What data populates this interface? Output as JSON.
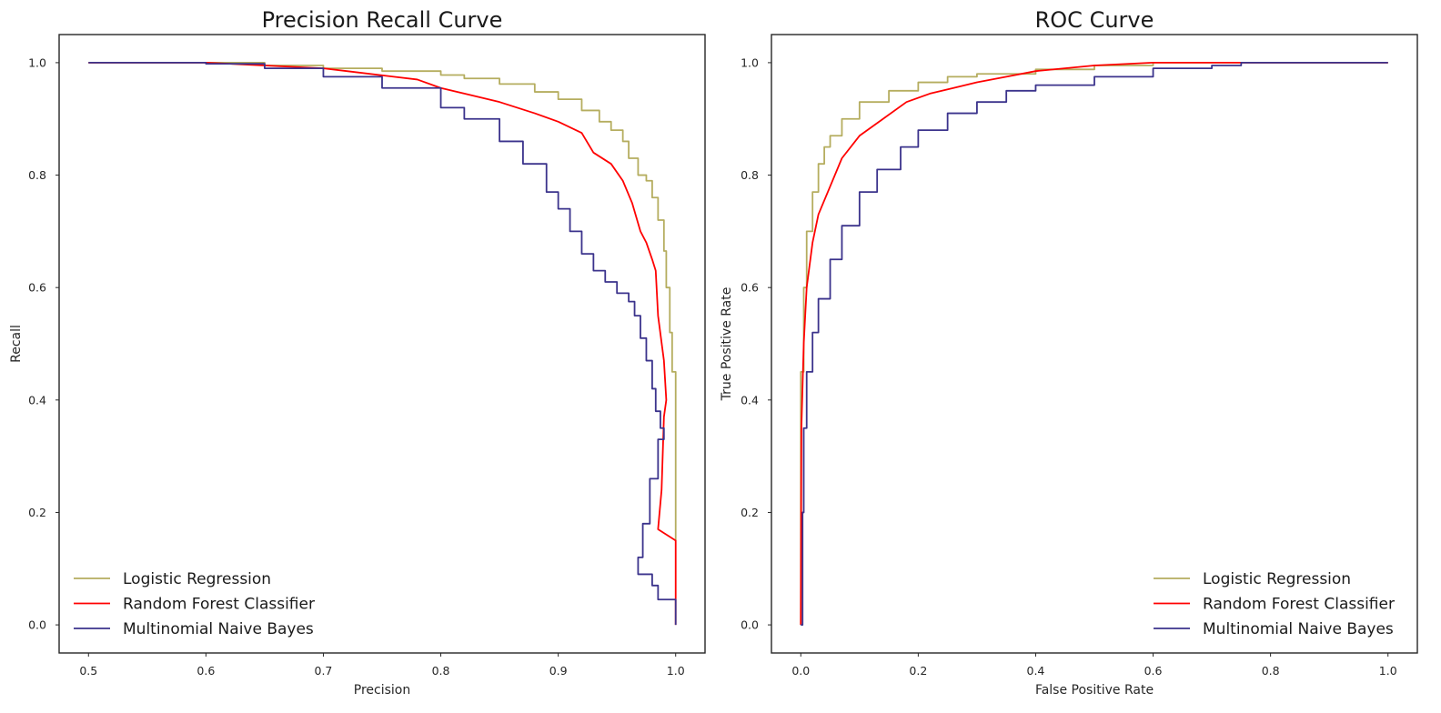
{
  "chart_data": [
    {
      "type": "line",
      "title": "Precision Recall Curve",
      "xlabel": "Precision",
      "ylabel": "Recall",
      "xlim": [
        0.475,
        1.025
      ],
      "ylim": [
        -0.05,
        1.05
      ],
      "xticks": [
        "0.5",
        "0.6",
        "0.7",
        "0.8",
        "0.9",
        "1.0"
      ],
      "yticks": [
        "0.0",
        "0.2",
        "0.4",
        "0.6",
        "0.8",
        "1.0"
      ],
      "grid": false,
      "legend": "lower-left",
      "series": [
        {
          "name": "Logistic Regression",
          "color": "#b5ad5f",
          "step": true,
          "points": [
            [
              0.5,
              1.0
            ],
            [
              0.6,
              1.0
            ],
            [
              0.65,
              0.995
            ],
            [
              0.7,
              0.99
            ],
            [
              0.75,
              0.985
            ],
            [
              0.8,
              0.978
            ],
            [
              0.82,
              0.972
            ],
            [
              0.85,
              0.962
            ],
            [
              0.88,
              0.948
            ],
            [
              0.9,
              0.935
            ],
            [
              0.92,
              0.915
            ],
            [
              0.935,
              0.895
            ],
            [
              0.945,
              0.88
            ],
            [
              0.955,
              0.86
            ],
            [
              0.96,
              0.83
            ],
            [
              0.968,
              0.8
            ],
            [
              0.975,
              0.79
            ],
            [
              0.98,
              0.76
            ],
            [
              0.985,
              0.72
            ],
            [
              0.99,
              0.665
            ],
            [
              0.992,
              0.6
            ],
            [
              0.995,
              0.52
            ],
            [
              0.997,
              0.45
            ],
            [
              1.0,
              0.33
            ],
            [
              1.0,
              0.15
            ]
          ]
        },
        {
          "name": "Random Forest Classifier",
          "color": "#ff0000",
          "step": false,
          "points": [
            [
              0.5,
              1.0
            ],
            [
              0.6,
              1.0
            ],
            [
              0.7,
              0.99
            ],
            [
              0.72,
              0.985
            ],
            [
              0.76,
              0.975
            ],
            [
              0.78,
              0.97
            ],
            [
              0.8,
              0.955
            ],
            [
              0.82,
              0.945
            ],
            [
              0.85,
              0.93
            ],
            [
              0.88,
              0.91
            ],
            [
              0.9,
              0.895
            ],
            [
              0.92,
              0.875
            ],
            [
              0.93,
              0.84
            ],
            [
              0.945,
              0.82
            ],
            [
              0.955,
              0.79
            ],
            [
              0.963,
              0.75
            ],
            [
              0.97,
              0.7
            ],
            [
              0.975,
              0.68
            ],
            [
              0.98,
              0.65
            ],
            [
              0.983,
              0.63
            ],
            [
              0.985,
              0.55
            ],
            [
              0.99,
              0.47
            ],
            [
              0.992,
              0.4
            ],
            [
              0.99,
              0.37
            ],
            [
              0.988,
              0.24
            ],
            [
              0.985,
              0.17
            ],
            [
              1.0,
              0.15
            ],
            [
              1.0,
              0.0
            ]
          ]
        },
        {
          "name": "Multinomial Naive Bayes",
          "color": "#3b338c",
          "step": true,
          "points": [
            [
              0.5,
              1.0
            ],
            [
              0.6,
              0.998
            ],
            [
              0.65,
              0.99
            ],
            [
              0.7,
              0.975
            ],
            [
              0.75,
              0.955
            ],
            [
              0.8,
              0.92
            ],
            [
              0.82,
              0.9
            ],
            [
              0.85,
              0.86
            ],
            [
              0.87,
              0.82
            ],
            [
              0.89,
              0.77
            ],
            [
              0.9,
              0.74
            ],
            [
              0.91,
              0.7
            ],
            [
              0.92,
              0.66
            ],
            [
              0.93,
              0.63
            ],
            [
              0.94,
              0.61
            ],
            [
              0.95,
              0.59
            ],
            [
              0.96,
              0.575
            ],
            [
              0.965,
              0.55
            ],
            [
              0.97,
              0.51
            ],
            [
              0.975,
              0.47
            ],
            [
              0.98,
              0.42
            ],
            [
              0.983,
              0.38
            ],
            [
              0.987,
              0.35
            ],
            [
              0.99,
              0.33
            ],
            [
              0.985,
              0.26
            ],
            [
              0.978,
              0.18
            ],
            [
              0.972,
              0.12
            ],
            [
              0.968,
              0.09
            ],
            [
              0.975,
              0.09
            ],
            [
              0.98,
              0.07
            ],
            [
              0.985,
              0.045
            ],
            [
              1.0,
              0.045
            ],
            [
              1.0,
              0.0
            ]
          ]
        }
      ]
    },
    {
      "type": "line",
      "title": "ROC Curve",
      "xlabel": "False Positive Rate",
      "ylabel": "True Positive Rate",
      "xlim": [
        -0.05,
        1.05
      ],
      "ylim": [
        -0.05,
        1.05
      ],
      "xticks": [
        "0.0",
        "0.2",
        "0.4",
        "0.6",
        "0.8",
        "1.0"
      ],
      "yticks": [
        "0.0",
        "0.2",
        "0.4",
        "0.6",
        "0.8",
        "1.0"
      ],
      "grid": false,
      "legend": "lower-right",
      "series": [
        {
          "name": "Logistic Regression",
          "color": "#b5ad5f",
          "step": true,
          "points": [
            [
              0.0,
              0.0
            ],
            [
              0.0,
              0.45
            ],
            [
              0.005,
              0.6
            ],
            [
              0.01,
              0.7
            ],
            [
              0.02,
              0.77
            ],
            [
              0.03,
              0.82
            ],
            [
              0.04,
              0.85
            ],
            [
              0.05,
              0.87
            ],
            [
              0.07,
              0.9
            ],
            [
              0.1,
              0.93
            ],
            [
              0.15,
              0.95
            ],
            [
              0.2,
              0.965
            ],
            [
              0.25,
              0.975
            ],
            [
              0.3,
              0.98
            ],
            [
              0.4,
              0.988
            ],
            [
              0.5,
              0.995
            ],
            [
              0.6,
              1.0
            ],
            [
              1.0,
              1.0
            ]
          ]
        },
        {
          "name": "Random Forest Classifier",
          "color": "#ff0000",
          "step": false,
          "points": [
            [
              0.0,
              0.0
            ],
            [
              0.001,
              0.35
            ],
            [
              0.005,
              0.5
            ],
            [
              0.01,
              0.6
            ],
            [
              0.02,
              0.68
            ],
            [
              0.03,
              0.73
            ],
            [
              0.05,
              0.78
            ],
            [
              0.07,
              0.83
            ],
            [
              0.1,
              0.87
            ],
            [
              0.14,
              0.9
            ],
            [
              0.18,
              0.93
            ],
            [
              0.22,
              0.945
            ],
            [
              0.26,
              0.955
            ],
            [
              0.3,
              0.965
            ],
            [
              0.35,
              0.975
            ],
            [
              0.4,
              0.985
            ],
            [
              0.5,
              0.995
            ],
            [
              0.6,
              1.0
            ],
            [
              1.0,
              1.0
            ]
          ]
        },
        {
          "name": "Multinomial Naive Bayes",
          "color": "#3b338c",
          "step": true,
          "points": [
            [
              0.0,
              0.0
            ],
            [
              0.003,
              0.2
            ],
            [
              0.005,
              0.35
            ],
            [
              0.01,
              0.45
            ],
            [
              0.02,
              0.52
            ],
            [
              0.03,
              0.58
            ],
            [
              0.05,
              0.65
            ],
            [
              0.07,
              0.71
            ],
            [
              0.1,
              0.77
            ],
            [
              0.13,
              0.81
            ],
            [
              0.17,
              0.85
            ],
            [
              0.2,
              0.88
            ],
            [
              0.25,
              0.91
            ],
            [
              0.3,
              0.93
            ],
            [
              0.35,
              0.95
            ],
            [
              0.4,
              0.96
            ],
            [
              0.5,
              0.975
            ],
            [
              0.6,
              0.99
            ],
            [
              0.7,
              0.995
            ],
            [
              0.75,
              1.0
            ],
            [
              1.0,
              1.0
            ]
          ]
        }
      ]
    }
  ]
}
